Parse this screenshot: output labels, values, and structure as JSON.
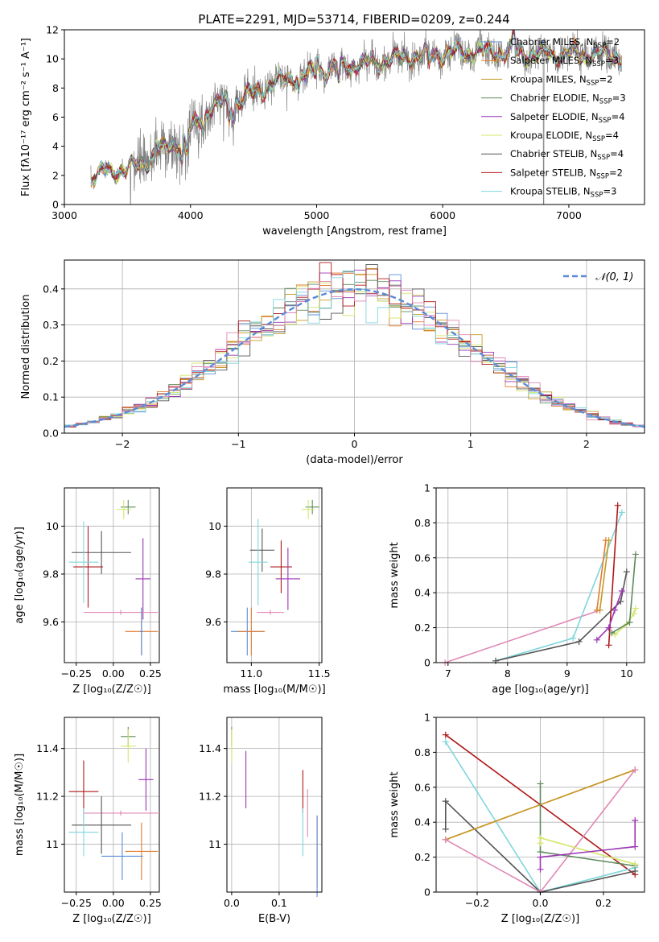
{
  "title": "PLATE=2291, MJD=53714, FIBERID=0209, z=0.244",
  "palette": {
    "Chabrier MILES": "#5b8bd8",
    "Salpeter MILES": "#e27c2f",
    "Kroupa MILES": "#c59a27",
    "Chabrier ELODIE": "#5d8a5d",
    "Salpeter ELODIE": "#9c36b5",
    "Kroupa ELODIE": "#d4e66a",
    "Chabrier STELIB": "#555555",
    "Salpeter STELIB": "#b01818",
    "Kroupa STELIB": "#7fd6dc",
    "data": "#808080",
    "extra": "#e088b4"
  },
  "chart_data": [
    {
      "id": "spectrum",
      "type": "line",
      "xlabel": "wavelength [Angstrom, rest frame]",
      "ylabel": "Flux [fλ10⁻¹⁷ erg cm⁻² s⁻¹ A⁻¹]",
      "xlim": [
        3000,
        7600
      ],
      "ylim": [
        0,
        12
      ],
      "xticks": [
        3000,
        4000,
        5000,
        6000,
        7000
      ],
      "yticks": [
        0,
        2,
        4,
        6,
        8,
        10,
        12
      ],
      "grid": false,
      "legend_position": "top-right",
      "legend": [
        {
          "model": "Chabrier MILES",
          "text": "Chabrier MILES, N",
          "sub": "SSP",
          "tail": "=2"
        },
        {
          "model": "Salpeter MILES",
          "text": "Salpeter MILES, N",
          "sub": "SSP",
          "tail": "=3"
        },
        {
          "model": "Kroupa MILES",
          "text": "Kroupa MILES, N",
          "sub": "SSP",
          "tail": "=2"
        },
        {
          "model": "Chabrier ELODIE",
          "text": "Chabrier ELODIE, N",
          "sub": "SSP",
          "tail": "=3"
        },
        {
          "model": "Salpeter ELODIE",
          "text": "Salpeter ELODIE, N",
          "sub": "SSP",
          "tail": "=4"
        },
        {
          "model": "Kroupa ELODIE",
          "text": "Kroupa ELODIE, N",
          "sub": "SSP",
          "tail": "=4"
        },
        {
          "model": "Chabrier STELIB",
          "text": "Chabrier STELIB, N",
          "sub": "SSP",
          "tail": "=4"
        },
        {
          "model": "Salpeter STELIB",
          "text": "Salpeter STELIB, N",
          "sub": "SSP",
          "tail": "=2"
        },
        {
          "model": "Kroupa STELIB",
          "text": "Kroupa STELIB, N",
          "sub": "SSP",
          "tail": "=3"
        }
      ],
      "continuum": {
        "x": [
          3210,
          3300,
          3400,
          3500,
          3550,
          3650,
          3750,
          3850,
          3950,
          4050,
          4150,
          4250,
          4350,
          4500,
          4650,
          4800,
          4900,
          5000,
          5100,
          5200,
          5300,
          5400,
          5500,
          5600,
          5800,
          6000,
          6200,
          6400,
          6600,
          6800,
          7000,
          7200,
          7400
        ],
        "y": [
          1.9,
          2.2,
          2.3,
          2.5,
          2.5,
          3.0,
          3.6,
          4.0,
          4.5,
          5.6,
          6.6,
          7.0,
          7.1,
          7.6,
          8.3,
          8.7,
          8.9,
          9.1,
          9.3,
          9.4,
          9.6,
          9.7,
          9.8,
          10.0,
          10.2,
          10.3,
          10.5,
          10.5,
          10.4,
          10.3,
          10.3,
          10.3,
          10.2
        ]
      }
    },
    {
      "id": "residuals",
      "type": "bar",
      "xlabel": "(data-model)/error",
      "ylabel": "Normed distribution",
      "xlim": [
        -2.5,
        2.5
      ],
      "ylim": [
        0,
        0.48
      ],
      "xticks": [
        -2,
        -1,
        0,
        1,
        2
      ],
      "yticks": [
        0.0,
        0.1,
        0.2,
        0.3,
        0.4
      ],
      "grid": true,
      "legend_position": "top-right",
      "bin_width": 0.1,
      "normal_legend": "𝒩(0, 1)",
      "normal_color": "#5b8bd8"
    },
    {
      "id": "age-vs-Z",
      "type": "scatter",
      "xlabel": "Z [log₁₀(Z/Z☉)]",
      "ylabel": "age  [log₁₀(age/yr)]",
      "xlim": [
        -0.33,
        0.31
      ],
      "ylim": [
        9.43,
        10.16
      ],
      "xticks": [
        -0.25,
        0,
        0.25
      ],
      "xticklabels": [
        "−0.25",
        "0.00",
        "0.25"
      ],
      "yticks": [
        9.6,
        9.8,
        10.0
      ],
      "grid": true,
      "points": [
        {
          "model": "Chabrier ELODIE",
          "x": 0.1,
          "xerr": 0.05,
          "y": 10.08,
          "yerr": 0.03
        },
        {
          "model": "Kroupa ELODIE",
          "x": 0.07,
          "xerr": 0.05,
          "y": 10.07,
          "yerr": 0.04
        },
        {
          "model": "Chabrier STELIB",
          "x": -0.08,
          "xerr": 0.2,
          "y": 9.89,
          "yerr": 0.09
        },
        {
          "model": "Salpeter STELIB",
          "x": -0.17,
          "xerr": 0.1,
          "y": 9.83,
          "yerr": 0.17
        },
        {
          "model": "Kroupa STELIB",
          "x": -0.2,
          "xerr": 0.1,
          "y": 9.85,
          "yerr": 0.17
        },
        {
          "model": "Salpeter ELODIE",
          "x": 0.2,
          "xerr": 0.05,
          "y": 9.78,
          "yerr": 0.17
        },
        {
          "model": "extra",
          "x": 0.05,
          "xerr": 0.25,
          "y": 9.64,
          "yerr": 0.01
        },
        {
          "model": "Salpeter MILES",
          "x": 0.19,
          "xerr": 0.11,
          "y": 9.56,
          "yerr": 0.1
        },
        {
          "model": "Chabrier MILES",
          "x": 0.19,
          "xerr": 0.01,
          "y": 9.56,
          "yerr": 0.1
        }
      ]
    },
    {
      "id": "age-vs-mass",
      "type": "scatter",
      "xlabel": "mass [log₁₀(M/M☉)]",
      "ylabel": "",
      "xlim": [
        10.82,
        11.52
      ],
      "ylim": [
        9.43,
        10.16
      ],
      "xticks": [
        11.0,
        11.5
      ],
      "xticklabels": [
        "11.0",
        "11.5"
      ],
      "yticks": [
        9.6,
        9.8,
        10.0
      ],
      "grid": true,
      "points": [
        {
          "model": "Chabrier ELODIE",
          "x": 11.45,
          "xerr": 0.05,
          "y": 10.08,
          "yerr": 0.03
        },
        {
          "model": "Kroupa ELODIE",
          "x": 11.42,
          "xerr": 0.05,
          "y": 10.07,
          "yerr": 0.04
        },
        {
          "model": "Chabrier STELIB",
          "x": 11.08,
          "xerr": 0.09,
          "y": 9.9,
          "yerr": 0.09
        },
        {
          "model": "Kroupa STELIB",
          "x": 11.05,
          "xerr": 0.07,
          "y": 9.85,
          "yerr": 0.18
        },
        {
          "model": "Salpeter STELIB",
          "x": 11.22,
          "xerr": 0.08,
          "y": 9.83,
          "yerr": 0.11
        },
        {
          "model": "Salpeter ELODIE",
          "x": 11.27,
          "xerr": 0.09,
          "y": 9.78,
          "yerr": 0.13
        },
        {
          "model": "extra",
          "x": 11.14,
          "xerr": 0.1,
          "y": 9.64,
          "yerr": 0.01
        },
        {
          "model": "Chabrier MILES",
          "x": 10.97,
          "xerr": 0.12,
          "y": 9.56,
          "yerr": 0.1
        },
        {
          "model": "Salpeter MILES",
          "x": 11.0,
          "xerr": 0.1,
          "y": 9.56,
          "yerr": 0.1
        }
      ]
    },
    {
      "id": "weight-vs-age",
      "type": "line",
      "xlabel": "age  [log₁₀(age/yr)]",
      "ylabel": "mass weight",
      "xlim": [
        6.8,
        10.3
      ],
      "ylim": [
        0,
        1.0
      ],
      "xticks": [
        7,
        8,
        9,
        10
      ],
      "yticks": [
        0.0,
        0.2,
        0.4,
        0.6,
        0.8,
        1.0
      ],
      "grid": true,
      "series": [
        {
          "model": "extra",
          "x": [
            6.95,
            9.55
          ],
          "y": [
            0.0,
            0.3
          ]
        },
        {
          "model": "Kroupa STELIB",
          "x": [
            7.8,
            9.1,
            9.92
          ],
          "y": [
            0.01,
            0.14,
            0.86
          ]
        },
        {
          "model": "Chabrier STELIB",
          "x": [
            7.8,
            9.2,
            9.9,
            10.0
          ],
          "y": [
            0.01,
            0.12,
            0.35,
            0.52
          ]
        },
        {
          "model": "Salpeter MILES",
          "x": [
            9.5,
            9.65
          ],
          "y": [
            0.3,
            0.7
          ]
        },
        {
          "model": "Kroupa MILES",
          "x": [
            9.55,
            9.7
          ],
          "y": [
            0.3,
            0.7
          ]
        },
        {
          "model": "Salpeter STELIB",
          "x": [
            9.7,
            9.85
          ],
          "y": [
            0.1,
            0.9
          ]
        },
        {
          "model": "Salpeter ELODIE",
          "x": [
            9.5,
            9.7,
            9.8,
            9.92
          ],
          "y": [
            0.13,
            0.2,
            0.3,
            0.41
          ]
        },
        {
          "model": "Kroupa ELODIE",
          "x": [
            9.8,
            10.0,
            10.12,
            10.15
          ],
          "y": [
            0.16,
            0.22,
            0.28,
            0.31
          ]
        },
        {
          "model": "Chabrier ELODIE",
          "x": [
            9.75,
            10.05,
            10.15
          ],
          "y": [
            0.17,
            0.23,
            0.62
          ]
        }
      ]
    },
    {
      "id": "mass-vs-Z",
      "type": "scatter",
      "xlabel": "Z [log₁₀(Z/Z☉)]",
      "ylabel": "mass [log₁₀(M/M☉)]",
      "xlim": [
        -0.33,
        0.31
      ],
      "ylim": [
        10.8,
        11.53
      ],
      "xticks": [
        -0.25,
        0,
        0.25
      ],
      "xticklabels": [
        "−0.25",
        "0.00",
        "0.25"
      ],
      "yticks": [
        11.0,
        11.2,
        11.4
      ],
      "grid": true,
      "points": [
        {
          "model": "Chabrier ELODIE",
          "x": 0.1,
          "xerr": 0.05,
          "y": 11.45,
          "yerr": 0.04
        },
        {
          "model": "Kroupa ELODIE",
          "x": 0.1,
          "xerr": 0.05,
          "y": 11.41,
          "yerr": 0.07
        },
        {
          "model": "Salpeter ELODIE",
          "x": 0.22,
          "xerr": 0.05,
          "y": 11.27,
          "yerr": 0.13
        },
        {
          "model": "Salpeter STELIB",
          "x": -0.2,
          "xerr": 0.1,
          "y": 11.22,
          "yerr": 0.13
        },
        {
          "model": "extra",
          "x": 0.05,
          "xerr": 0.25,
          "y": 11.13,
          "yerr": 0.01
        },
        {
          "model": "Chabrier STELIB",
          "x": -0.08,
          "xerr": 0.2,
          "y": 11.08,
          "yerr": 0.12
        },
        {
          "model": "Kroupa STELIB",
          "x": -0.2,
          "xerr": 0.1,
          "y": 11.05,
          "yerr": 0.1
        },
        {
          "model": "Salpeter MILES",
          "x": 0.19,
          "xerr": 0.11,
          "y": 10.97,
          "yerr": 0.12
        },
        {
          "model": "Chabrier MILES",
          "x": 0.06,
          "xerr": 0.14,
          "y": 10.95,
          "yerr": 0.1
        }
      ]
    },
    {
      "id": "mass-vs-ebv",
      "type": "scatter",
      "xlabel": "E(B-V)",
      "ylabel": "",
      "xlim": [
        -0.01,
        0.19
      ],
      "ylim": [
        10.8,
        11.53
      ],
      "xticks": [
        0.0,
        0.1
      ],
      "xticklabels": [
        "0.0",
        "0.1"
      ],
      "yticks": [
        11.0,
        11.2,
        11.4
      ],
      "grid": true,
      "points": [
        {
          "model": "Chabrier ELODIE",
          "x": 0.0,
          "xerr": 0.0,
          "y": 11.45,
          "yerr": 0.04
        },
        {
          "model": "Kroupa ELODIE",
          "x": 0.0,
          "xerr": 0.0,
          "y": 11.41,
          "yerr": 0.07
        },
        {
          "model": "Salpeter ELODIE",
          "x": 0.03,
          "xerr": 0.0,
          "y": 11.27,
          "yerr": 0.12
        },
        {
          "model": "Salpeter STELIB",
          "x": 0.15,
          "xerr": 0.0,
          "y": 11.22,
          "yerr": 0.09
        },
        {
          "model": "extra",
          "x": 0.16,
          "xerr": 0.0,
          "y": 11.13,
          "yerr": 0.1
        },
        {
          "model": "Kroupa STELIB",
          "x": 0.15,
          "xerr": 0.0,
          "y": 11.05,
          "yerr": 0.1
        },
        {
          "model": "Salpeter MILES",
          "x": 0.18,
          "xerr": 0.0,
          "y": 10.97,
          "yerr": 0.15
        },
        {
          "model": "Chabrier MILES",
          "x": 0.18,
          "xerr": 0.0,
          "y": 10.95,
          "yerr": 0.17
        }
      ]
    },
    {
      "id": "weight-vs-Z",
      "type": "line",
      "xlabel": "Z [log₁₀(Z/Z☉)]",
      "ylabel": "mass weight",
      "xlim": [
        -0.33,
        0.33
      ],
      "ylim": [
        0,
        1.0
      ],
      "xticks": [
        -0.2,
        0,
        0.2
      ],
      "xticklabels": [
        "−0.2",
        "0.0",
        "0.2"
      ],
      "yticks": [
        0.0,
        0.2,
        0.4,
        0.6,
        0.8,
        1.0
      ],
      "grid": true,
      "series": [
        {
          "model": "Salpeter STELIB",
          "x": [
            -0.3,
            0.3
          ],
          "y": [
            0.9,
            0.1
          ]
        },
        {
          "model": "Kroupa STELIB",
          "x": [
            -0.3,
            0.0,
            0.3
          ],
          "y": [
            0.86,
            0.0,
            0.14
          ]
        },
        {
          "model": "Chabrier STELIB",
          "x": [
            -0.3,
            -0.3,
            0.0,
            0.3
          ],
          "y": [
            0.36,
            0.52,
            0.0,
            0.12
          ]
        },
        {
          "model": "Salpeter MILES",
          "x": [
            -0.3,
            0.3
          ],
          "y": [
            0.3,
            0.7
          ]
        },
        {
          "model": "Kroupa MILES",
          "x": [
            -0.3,
            0.3
          ],
          "y": [
            0.3,
            0.7
          ]
        },
        {
          "model": "extra",
          "x": [
            -0.3,
            0.0,
            0.3
          ],
          "y": [
            0.3,
            0.0,
            0.7
          ]
        },
        {
          "model": "Chabrier ELODIE",
          "x": [
            0.0,
            0.0,
            0.3
          ],
          "y": [
            0.62,
            0.23,
            0.15
          ]
        },
        {
          "model": "Kroupa ELODIE",
          "x": [
            0.0,
            0.0,
            0.3
          ],
          "y": [
            0.28,
            0.31,
            0.16
          ]
        },
        {
          "model": "Salpeter ELODIE",
          "x": [
            0.0,
            0.0,
            0.3,
            0.3
          ],
          "y": [
            0.13,
            0.2,
            0.26,
            0.41
          ]
        }
      ]
    }
  ]
}
